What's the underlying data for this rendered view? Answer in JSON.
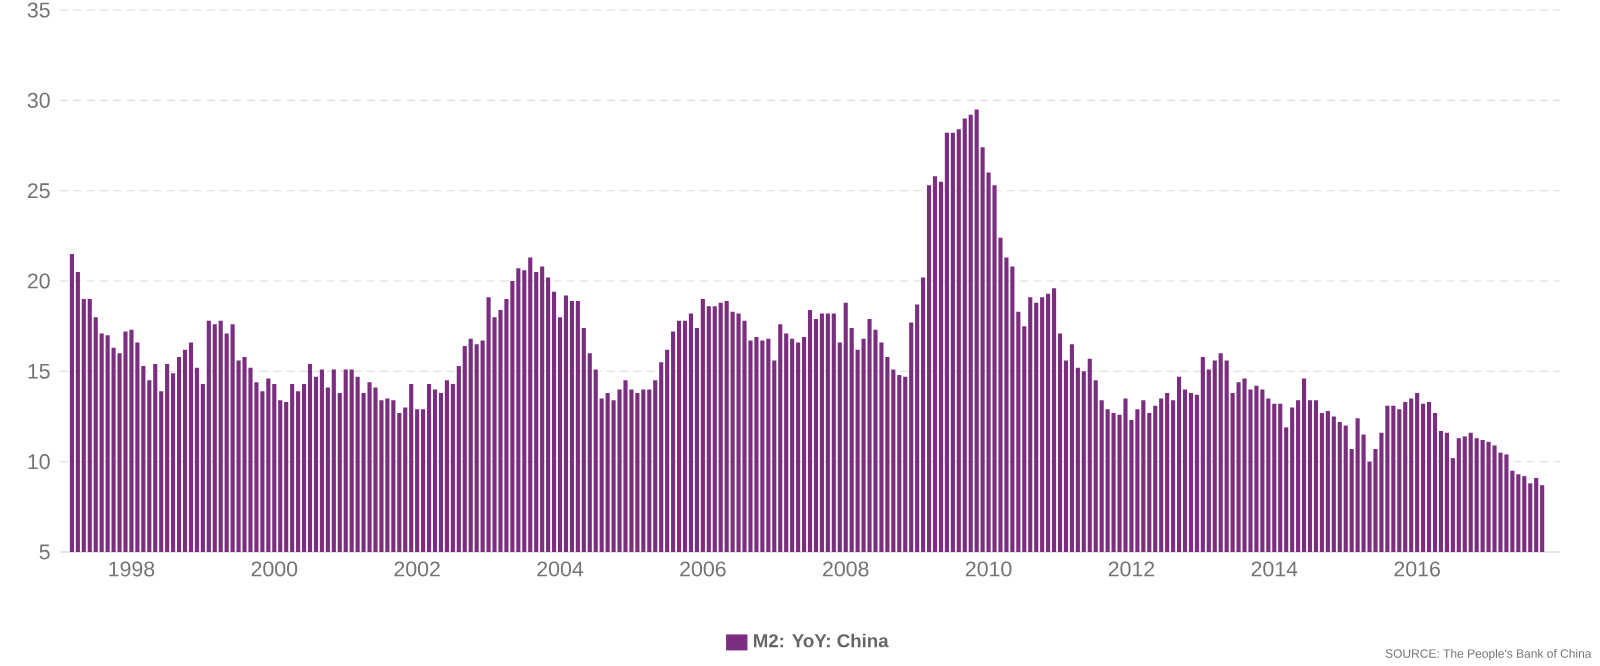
{
  "chart_data": {
    "type": "bar",
    "x": [
      "1997-03",
      "1997-04",
      "1997-05",
      "1997-06",
      "1997-07",
      "1997-08",
      "1997-09",
      "1997-10",
      "1997-11",
      "1997-12",
      "1998-01",
      "1998-02",
      "1998-03",
      "1998-04",
      "1998-05",
      "1998-06",
      "1998-07",
      "1998-08",
      "1998-09",
      "1998-10",
      "1998-11",
      "1998-12",
      "1999-01",
      "1999-02",
      "1999-03",
      "1999-04",
      "1999-05",
      "1999-06",
      "1999-07",
      "1999-08",
      "1999-09",
      "1999-10",
      "1999-11",
      "1999-12",
      "2000-01",
      "2000-02",
      "2000-03",
      "2000-04",
      "2000-05",
      "2000-06",
      "2000-07",
      "2000-08",
      "2000-09",
      "2000-10",
      "2000-11",
      "2000-12",
      "2001-01",
      "2001-02",
      "2001-03",
      "2001-04",
      "2001-05",
      "2001-06",
      "2001-07",
      "2001-08",
      "2001-09",
      "2001-10",
      "2001-11",
      "2001-12",
      "2002-01",
      "2002-02",
      "2002-03",
      "2002-04",
      "2002-05",
      "2002-06",
      "2002-07",
      "2002-08",
      "2002-09",
      "2002-10",
      "2002-11",
      "2002-12",
      "2003-01",
      "2003-02",
      "2003-03",
      "2003-04",
      "2003-05",
      "2003-06",
      "2003-07",
      "2003-08",
      "2003-09",
      "2003-10",
      "2003-11",
      "2003-12",
      "2004-01",
      "2004-02",
      "2004-03",
      "2004-04",
      "2004-05",
      "2004-06",
      "2004-07",
      "2004-08",
      "2004-09",
      "2004-10",
      "2004-11",
      "2004-12",
      "2005-01",
      "2005-02",
      "2005-03",
      "2005-04",
      "2005-05",
      "2005-06",
      "2005-07",
      "2005-08",
      "2005-09",
      "2005-10",
      "2005-11",
      "2005-12",
      "2006-01",
      "2006-02",
      "2006-03",
      "2006-04",
      "2006-05",
      "2006-06",
      "2006-07",
      "2006-08",
      "2006-09",
      "2006-10",
      "2006-11",
      "2006-12",
      "2007-01",
      "2007-02",
      "2007-03",
      "2007-04",
      "2007-05",
      "2007-06",
      "2007-07",
      "2007-08",
      "2007-09",
      "2007-10",
      "2007-11",
      "2007-12",
      "2008-01",
      "2008-02",
      "2008-03",
      "2008-04",
      "2008-05",
      "2008-06",
      "2008-07",
      "2008-08",
      "2008-09",
      "2008-10",
      "2008-11",
      "2008-12",
      "2009-01",
      "2009-02",
      "2009-03",
      "2009-04",
      "2009-05",
      "2009-06",
      "2009-07",
      "2009-08",
      "2009-09",
      "2009-10",
      "2009-11",
      "2009-12",
      "2010-01",
      "2010-02",
      "2010-03",
      "2010-04",
      "2010-05",
      "2010-06",
      "2010-07",
      "2010-08",
      "2010-09",
      "2010-10",
      "2010-11",
      "2010-12",
      "2011-01",
      "2011-02",
      "2011-03",
      "2011-04",
      "2011-05",
      "2011-06",
      "2011-07",
      "2011-08",
      "2011-09",
      "2011-10",
      "2011-11",
      "2011-12",
      "2012-01",
      "2012-02",
      "2012-03",
      "2012-04",
      "2012-05",
      "2012-06",
      "2012-07",
      "2012-08",
      "2012-09",
      "2012-10",
      "2012-11",
      "2012-12",
      "2013-01",
      "2013-02",
      "2013-03",
      "2013-04",
      "2013-05",
      "2013-06",
      "2013-07",
      "2013-08",
      "2013-09",
      "2013-10",
      "2013-11",
      "2013-12",
      "2014-01",
      "2014-02",
      "2014-03",
      "2014-04",
      "2014-05",
      "2014-06",
      "2014-07",
      "2014-08",
      "2014-09",
      "2014-10",
      "2014-11",
      "2014-12",
      "2015-01",
      "2015-02",
      "2015-03",
      "2015-04",
      "2015-05",
      "2015-06",
      "2015-07",
      "2015-08",
      "2015-09",
      "2015-10",
      "2015-11",
      "2015-12",
      "2016-01",
      "2016-02",
      "2016-03",
      "2016-04",
      "2016-05",
      "2016-06",
      "2016-07",
      "2016-08",
      "2016-09",
      "2016-10",
      "2016-11",
      "2016-12",
      "2017-01",
      "2017-02",
      "2017-03",
      "2017-04",
      "2017-05",
      "2017-06",
      "2017-07",
      "2017-08",
      "2017-09",
      "2017-10"
    ],
    "series": [
      {
        "name": "M2: YoY: China",
        "color": "#7b2d80",
        "values": [
          21.5,
          20.5,
          19.0,
          19.0,
          18.0,
          17.1,
          17.0,
          16.3,
          16.0,
          17.2,
          17.3,
          16.6,
          15.3,
          14.5,
          15.4,
          13.9,
          15.4,
          14.9,
          15.8,
          16.2,
          16.6,
          15.2,
          14.3,
          17.8,
          17.6,
          17.8,
          17.1,
          17.6,
          15.6,
          15.8,
          15.2,
          14.4,
          13.9,
          14.6,
          14.3,
          13.4,
          13.3,
          14.3,
          13.9,
          14.3,
          15.4,
          14.7,
          15.1,
          14.1,
          15.1,
          13.8,
          15.1,
          15.1,
          14.7,
          13.8,
          14.4,
          14.1,
          13.4,
          13.5,
          13.4,
          12.7,
          13.0,
          14.3,
          12.9,
          12.9,
          14.3,
          14.0,
          13.8,
          14.5,
          14.3,
          15.3,
          16.4,
          16.8,
          16.5,
          16.7,
          19.1,
          18.0,
          18.4,
          19.0,
          20.0,
          20.7,
          20.6,
          21.3,
          20.5,
          20.8,
          20.2,
          19.4,
          18.0,
          19.2,
          18.9,
          18.9,
          17.4,
          16.0,
          15.1,
          13.5,
          13.8,
          13.4,
          14.0,
          14.5,
          14.0,
          13.8,
          14.0,
          14.0,
          14.5,
          15.5,
          16.2,
          17.2,
          17.8,
          17.8,
          18.2,
          17.4,
          19.0,
          18.6,
          18.6,
          18.8,
          18.9,
          18.3,
          18.2,
          17.8,
          16.7,
          16.9,
          16.7,
          16.8,
          15.6,
          17.6,
          17.1,
          16.8,
          16.6,
          16.9,
          18.4,
          17.9,
          18.2,
          18.2,
          18.2,
          16.6,
          18.8,
          17.4,
          16.2,
          16.8,
          17.9,
          17.3,
          16.6,
          15.8,
          15.1,
          14.8,
          14.7,
          17.7,
          18.7,
          20.2,
          25.3,
          25.8,
          25.5,
          28.2,
          28.2,
          28.4,
          29.0,
          29.2,
          29.5,
          27.4,
          26.0,
          25.3,
          22.4,
          21.3,
          20.8,
          18.3,
          17.5,
          19.1,
          18.8,
          19.1,
          19.3,
          19.6,
          17.1,
          15.6,
          16.5,
          15.2,
          15.0,
          15.7,
          14.5,
          13.4,
          12.9,
          12.7,
          12.6,
          13.5,
          12.3,
          12.9,
          13.4,
          12.7,
          13.1,
          13.5,
          13.8,
          13.4,
          14.7,
          14.0,
          13.8,
          13.7,
          15.8,
          15.1,
          15.6,
          16.0,
          15.6,
          13.8,
          14.4,
          14.6,
          14.0,
          14.2,
          14.0,
          13.5,
          13.2,
          13.2,
          11.9,
          13.0,
          13.4,
          14.6,
          13.4,
          13.4,
          12.7,
          12.8,
          12.5,
          12.2,
          12.0,
          10.7,
          12.4,
          11.5,
          10.0,
          10.7,
          11.6,
          13.1,
          13.1,
          12.9,
          13.3,
          13.5,
          13.8,
          13.2,
          13.3,
          12.7,
          11.7,
          11.6,
          10.2,
          11.3,
          11.4,
          11.6,
          11.3,
          11.2,
          11.1,
          10.9,
          10.5,
          10.4,
          9.5,
          9.3,
          9.2,
          8.8,
          9.1,
          8.7
        ]
      }
    ],
    "xlim": [
      "1997-01",
      "2018-01"
    ],
    "xticks": [
      "1998",
      "2000",
      "2002",
      "2004",
      "2006",
      "2008",
      "2010",
      "2012",
      "2014",
      "2016"
    ],
    "ylim": [
      5,
      35
    ],
    "yticks": [
      5,
      10,
      15,
      20,
      25,
      30,
      35
    ],
    "grid": "y",
    "legend": "bottom",
    "annotations": [
      "SOURCE: The People's Bank of China"
    ]
  }
}
